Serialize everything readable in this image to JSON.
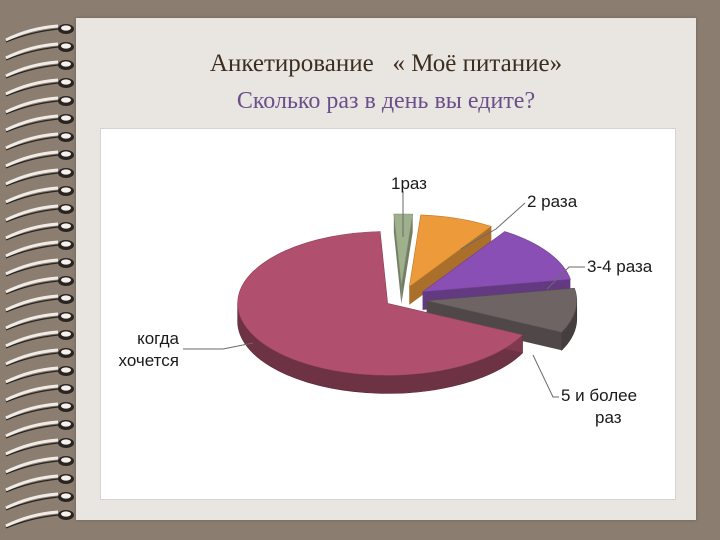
{
  "slide": {
    "title": "Анкетирование   « Моё питание»",
    "subtitle": "Сколько раз в день вы едите?"
  },
  "colors": {
    "background": "#8b7d70",
    "paper": "#e9e5e1",
    "title": "#3b2e21",
    "subtitle": "#6b4f8a"
  },
  "chart_data": {
    "type": "pie",
    "style": "3d-exploded",
    "title": "",
    "categories": [
      "1раз",
      "2 раза",
      "3-4 раза",
      "5 и более раз",
      "когда хочется"
    ],
    "values": [
      2,
      8,
      13,
      10,
      67
    ],
    "colors": [
      "#9fb08c",
      "#ec9a3a",
      "#8a4fb4",
      "#6f6464",
      "#b0506e"
    ],
    "labels": [
      {
        "lines": [
          "1раз"
        ]
      },
      {
        "lines": [
          "2 раза"
        ]
      },
      {
        "lines": [
          "3-4 раза"
        ]
      },
      {
        "lines": [
          "5 и более",
          "раз"
        ]
      },
      {
        "lines": [
          "когда",
          "хочется"
        ]
      }
    ]
  }
}
